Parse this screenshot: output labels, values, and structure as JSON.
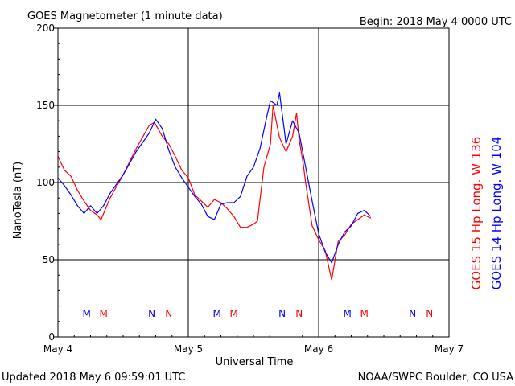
{
  "header": {
    "title": "GOES Magnetometer (1 minute data)",
    "begin_label": "Begin:  2018 May 4 0000 UTC"
  },
  "footer": {
    "updated": "Updated 2018 May  6 09:59:01 UTC",
    "source": "NOAA/SWPC Boulder, CO USA"
  },
  "chart_data": {
    "type": "line",
    "title": "GOES Magnetometer (1 minute data)",
    "xlabel": "Universal Time",
    "ylabel": "NanoTesla (nT)",
    "x_unit": "days since 2018 May 4 0000 UTC",
    "xlim": [
      0,
      3
    ],
    "ylim": [
      0,
      200
    ],
    "x_ticks": [
      {
        "value": 0,
        "label": "May 4"
      },
      {
        "value": 1,
        "label": "May 5"
      },
      {
        "value": 2,
        "label": "May 6"
      },
      {
        "value": 3,
        "label": "May 7"
      }
    ],
    "y_ticks": [
      0,
      50,
      100,
      150,
      200
    ],
    "grid": true,
    "legend_position": "right (vertical)",
    "series": [
      {
        "name": "GOES 15 Hp  Long. W 136",
        "color": "#ff0000",
        "x": [
          0.0,
          0.05,
          0.1,
          0.15,
          0.2,
          0.25,
          0.3,
          0.33,
          0.4,
          0.5,
          0.6,
          0.7,
          0.74,
          0.8,
          0.85,
          0.9,
          0.95,
          1.0,
          1.05,
          1.1,
          1.15,
          1.2,
          1.25,
          1.3,
          1.35,
          1.4,
          1.45,
          1.5,
          1.53,
          1.58,
          1.63,
          1.65,
          1.7,
          1.75,
          1.8,
          1.83,
          1.85,
          1.88,
          1.9,
          1.95,
          2.0,
          2.05,
          2.1,
          2.15,
          2.2,
          2.25,
          2.3,
          2.35,
          2.4
        ],
        "values": [
          117,
          108,
          104,
          95,
          88,
          82,
          79,
          76,
          90,
          105,
          122,
          137,
          139,
          130,
          125,
          117,
          108,
          103,
          92,
          88,
          84,
          89,
          87,
          83,
          78,
          71,
          71,
          73,
          75,
          110,
          125,
          150,
          129,
          120,
          130,
          145,
          128,
          113,
          100,
          72,
          63,
          56,
          37,
          62,
          66,
          73,
          76,
          79,
          77
        ],
        "markers": [
          {
            "x": 0.35,
            "label": "M"
          },
          {
            "x": 0.85,
            "label": "N"
          },
          {
            "x": 1.35,
            "label": "M"
          },
          {
            "x": 1.85,
            "label": "N"
          },
          {
            "x": 2.35,
            "label": "M"
          },
          {
            "x": 2.85,
            "label": "N"
          }
        ]
      },
      {
        "name": "GOES 14 Hp  Long. W 104",
        "color": "#0000ff",
        "x": [
          0.0,
          0.05,
          0.1,
          0.15,
          0.2,
          0.25,
          0.3,
          0.35,
          0.4,
          0.5,
          0.6,
          0.7,
          0.75,
          0.8,
          0.85,
          0.9,
          0.95,
          1.0,
          1.05,
          1.1,
          1.15,
          1.2,
          1.25,
          1.3,
          1.35,
          1.4,
          1.45,
          1.5,
          1.55,
          1.6,
          1.63,
          1.68,
          1.7,
          1.75,
          1.8,
          1.85,
          1.9,
          1.95,
          2.0,
          2.05,
          2.1,
          2.15,
          2.2,
          2.25,
          2.3,
          2.35,
          2.4
        ],
        "values": [
          103,
          98,
          92,
          85,
          80,
          85,
          80,
          85,
          93,
          105,
          120,
          132,
          141,
          135,
          121,
          110,
          103,
          97,
          91,
          86,
          78,
          76,
          86,
          87,
          87,
          91,
          104,
          110,
          122,
          142,
          153,
          150,
          158,
          125,
          140,
          132,
          110,
          88,
          67,
          55,
          48,
          60,
          68,
          72,
          80,
          82,
          78
        ],
        "markers": [
          {
            "x": 0.22,
            "label": "M"
          },
          {
            "x": 0.72,
            "label": "N"
          },
          {
            "x": 1.22,
            "label": "M"
          },
          {
            "x": 1.72,
            "label": "N"
          },
          {
            "x": 2.22,
            "label": "M"
          },
          {
            "x": 2.72,
            "label": "N"
          }
        ]
      }
    ]
  }
}
